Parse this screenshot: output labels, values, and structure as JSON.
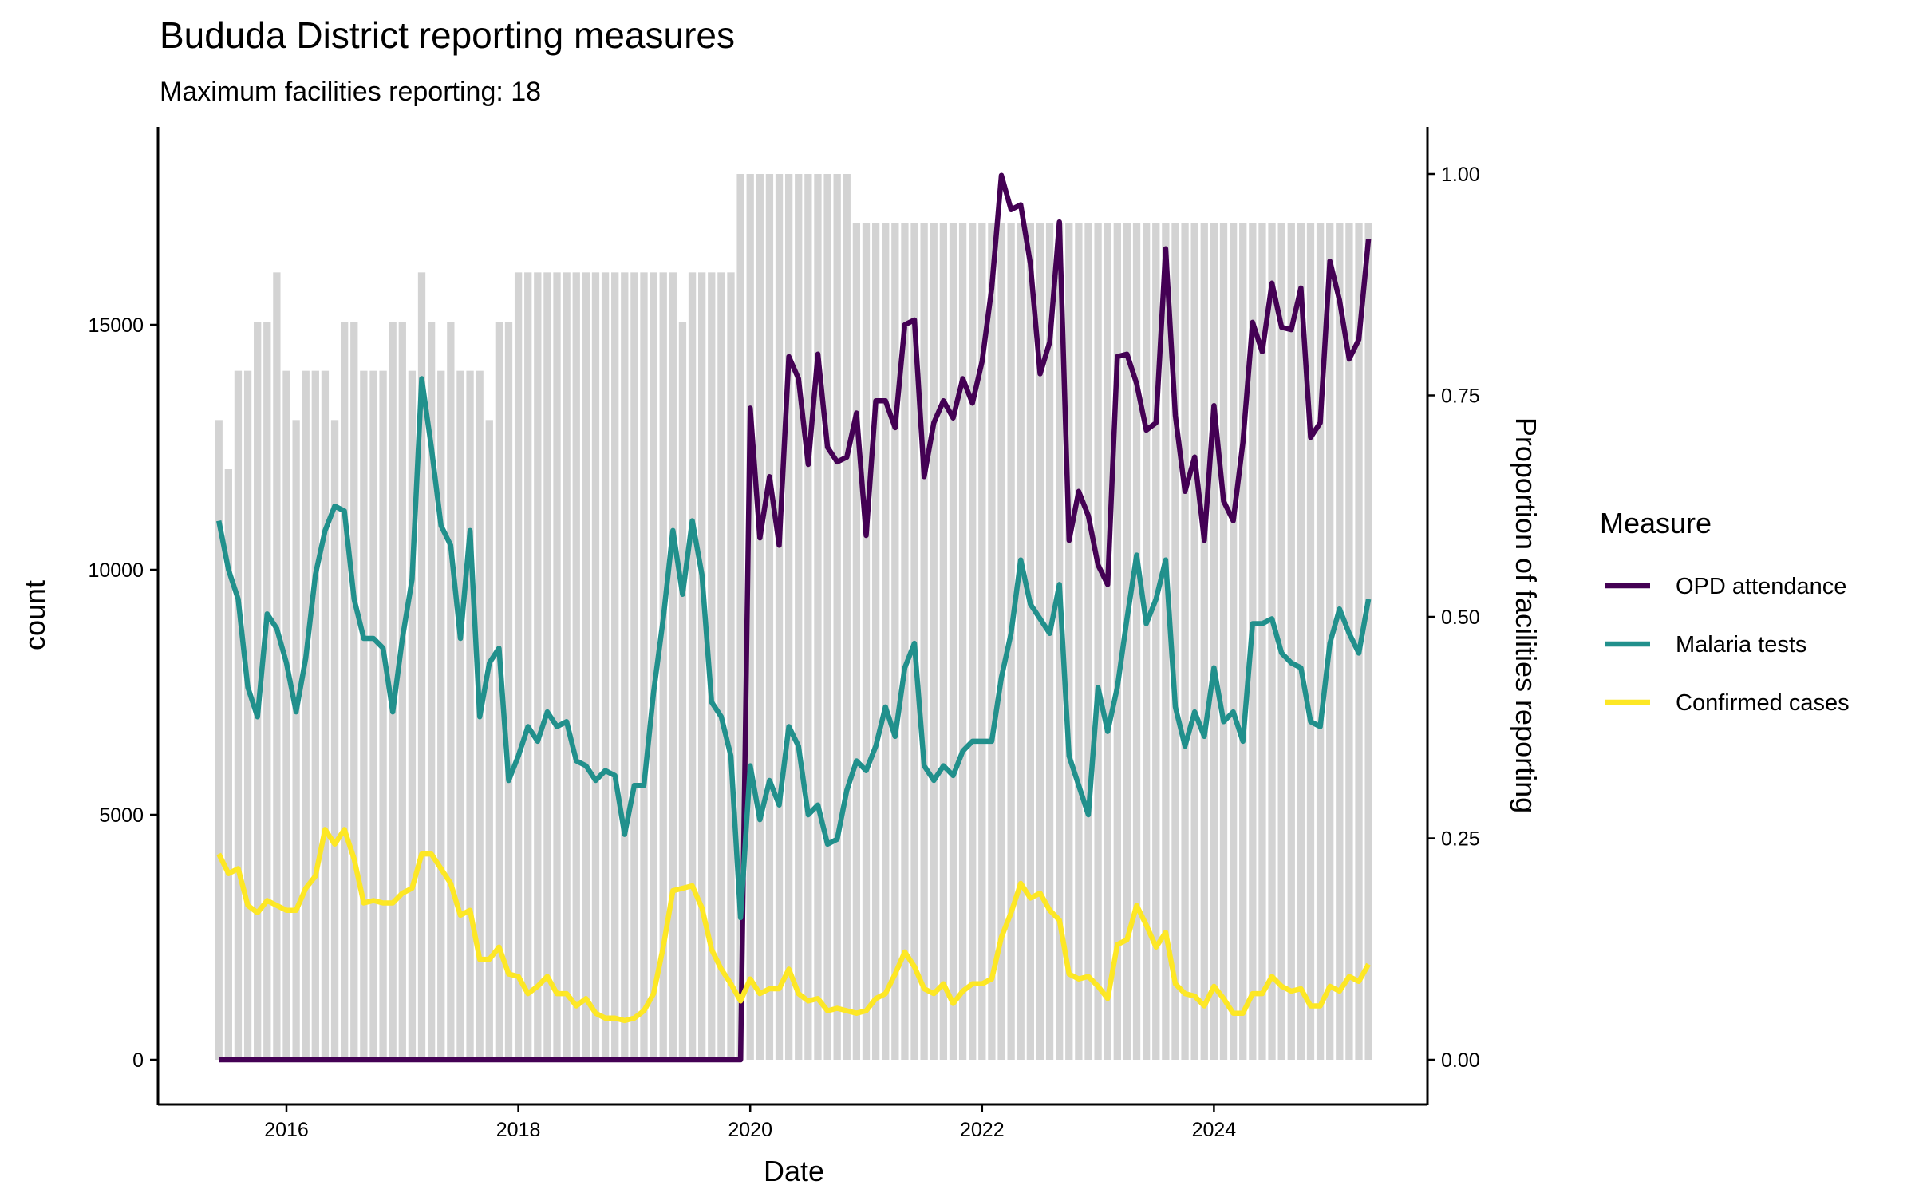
{
  "chart_data": {
    "type": "line",
    "title": "Bududa District reporting measures",
    "subtitle": "Maximum facilities reporting: 18",
    "xlabel": "Date",
    "ylabel": "count",
    "y2label": "Proportion of facilities reporting",
    "xticks": [
      "2016",
      "2018",
      "2020",
      "2022",
      "2024"
    ],
    "yticks": [
      "0",
      "5000",
      "10000",
      "15000"
    ],
    "y2ticks": [
      "0.00",
      "0.25",
      "0.50",
      "0.75",
      "1.00"
    ],
    "ylim": [
      -1000,
      18500
    ],
    "y2lim": [
      0,
      1
    ],
    "max_facilities": 18,
    "grid": false,
    "legend": {
      "title": "Measure",
      "placement": "right"
    },
    "dates": [
      "2015-06",
      "2015-07",
      "2015-08",
      "2015-09",
      "2015-10",
      "2015-11",
      "2015-12",
      "2016-01",
      "2016-02",
      "2016-03",
      "2016-04",
      "2016-05",
      "2016-06",
      "2016-07",
      "2016-08",
      "2016-09",
      "2016-10",
      "2016-11",
      "2016-12",
      "2017-01",
      "2017-02",
      "2017-03",
      "2017-04",
      "2017-05",
      "2017-06",
      "2017-07",
      "2017-08",
      "2017-09",
      "2017-10",
      "2017-11",
      "2017-12",
      "2018-01",
      "2018-02",
      "2018-03",
      "2018-04",
      "2018-05",
      "2018-06",
      "2018-07",
      "2018-08",
      "2018-09",
      "2018-10",
      "2018-11",
      "2018-12",
      "2019-01",
      "2019-02",
      "2019-03",
      "2019-04",
      "2019-05",
      "2019-06",
      "2019-07",
      "2019-08",
      "2019-09",
      "2019-10",
      "2019-11",
      "2019-12",
      "2020-01",
      "2020-02",
      "2020-03",
      "2020-04",
      "2020-05",
      "2020-06",
      "2020-07",
      "2020-08",
      "2020-09",
      "2020-10",
      "2020-11",
      "2020-12",
      "2021-01",
      "2021-02",
      "2021-03",
      "2021-04",
      "2021-05",
      "2021-06",
      "2021-07",
      "2021-08",
      "2021-09",
      "2021-10",
      "2021-11",
      "2021-12",
      "2022-01",
      "2022-02",
      "2022-03",
      "2022-04",
      "2022-05",
      "2022-06",
      "2022-07",
      "2022-08",
      "2022-09",
      "2022-10",
      "2022-11",
      "2022-12",
      "2023-01",
      "2023-02",
      "2023-03",
      "2023-04",
      "2023-05",
      "2023-06",
      "2023-07",
      "2023-08",
      "2023-09",
      "2023-10",
      "2023-11",
      "2023-12",
      "2024-01",
      "2024-02",
      "2024-03",
      "2024-04",
      "2024-05",
      "2024-06",
      "2024-07",
      "2024-08",
      "2024-09",
      "2024-10",
      "2024-11",
      "2024-12",
      "2025-01",
      "2025-02",
      "2025-03",
      "2025-04",
      "2025-05"
    ],
    "facilities_reporting": [
      13,
      12,
      14,
      14,
      15,
      15,
      16,
      14,
      13,
      14,
      14,
      14,
      13,
      15,
      15,
      14,
      14,
      14,
      15,
      15,
      14,
      16,
      15,
      14,
      15,
      14,
      14,
      14,
      13,
      15,
      15,
      16,
      16,
      16,
      16,
      16,
      16,
      16,
      16,
      16,
      16,
      16,
      16,
      16,
      16,
      16,
      16,
      16,
      15,
      16,
      16,
      16,
      16,
      16,
      18,
      18,
      18,
      18,
      18,
      18,
      18,
      18,
      18,
      18,
      18,
      18,
      17,
      17,
      17,
      17,
      17,
      17,
      17,
      17,
      17,
      17,
      17,
      17,
      17,
      17,
      17,
      17,
      17,
      17,
      17,
      17,
      17,
      17,
      17,
      17,
      17,
      17,
      17,
      17,
      17,
      17,
      17,
      17,
      17,
      17,
      17,
      17,
      17,
      17,
      17,
      17,
      17,
      17,
      17,
      17,
      17,
      17,
      17,
      17,
      17,
      17,
      17,
      17,
      17,
      17
    ],
    "series": [
      {
        "name": "OPD attendance",
        "color": "#440154",
        "values": [
          0,
          0,
          0,
          0,
          0,
          0,
          0,
          0,
          0,
          0,
          0,
          0,
          0,
          0,
          0,
          0,
          0,
          0,
          0,
          0,
          0,
          0,
          0,
          0,
          0,
          0,
          0,
          0,
          0,
          0,
          0,
          0,
          0,
          0,
          0,
          0,
          0,
          0,
          0,
          0,
          0,
          0,
          0,
          0,
          0,
          0,
          0,
          0,
          0,
          0,
          0,
          0,
          0,
          0,
          0,
          13300,
          10650,
          11900,
          10500,
          14350,
          13900,
          12150,
          14400,
          12500,
          12200,
          12300,
          13200,
          10700,
          13450,
          13450,
          12900,
          15000,
          15100,
          11900,
          13000,
          13450,
          13100,
          13900,
          13400,
          14250,
          15750,
          18050,
          17350,
          17450,
          16250,
          14000,
          14650,
          17100,
          10600,
          11600,
          11100,
          10100,
          9700,
          14350,
          14400,
          13800,
          12850,
          13000,
          16550,
          13150,
          11600,
          12300,
          10600,
          13350,
          11400,
          11000,
          12600,
          15050,
          14450,
          15850,
          14950,
          14900,
          15750,
          12700,
          13000,
          16300,
          15500,
          14300,
          14700,
          16750
        ]
      },
      {
        "name": "Malaria tests",
        "color": "#21908C",
        "values": [
          11000,
          10000,
          9400,
          7600,
          7000,
          9100,
          8800,
          8100,
          7100,
          8200,
          9900,
          10800,
          11300,
          11200,
          9400,
          8600,
          8600,
          8400,
          7100,
          8600,
          9800,
          13900,
          12500,
          10900,
          10500,
          8600,
          10800,
          7000,
          8100,
          8400,
          5700,
          6200,
          6800,
          6500,
          7100,
          6800,
          6900,
          6100,
          6000,
          5700,
          5900,
          5800,
          4600,
          5600,
          5600,
          7500,
          9000,
          10800,
          9500,
          11000,
          9900,
          7300,
          7000,
          6200,
          2900,
          6000,
          4900,
          5700,
          5200,
          6800,
          6400,
          5000,
          5200,
          4400,
          4500,
          5500,
          6100,
          5900,
          6400,
          7200,
          6600,
          8000,
          8500,
          6000,
          5700,
          6000,
          5800,
          6300,
          6500,
          6500,
          6500,
          7800,
          8700,
          10200,
          9300,
          9000,
          8700,
          9700,
          6200,
          5600,
          5000,
          7600,
          6700,
          7600,
          9000,
          10300,
          8900,
          9400,
          10200,
          7200,
          6400,
          7100,
          6600,
          8000,
          6900,
          7100,
          6500,
          8900,
          8900,
          9000,
          8300,
          8100,
          8000,
          6900,
          6800,
          8500,
          9200,
          8700,
          8300,
          9400
        ]
      },
      {
        "name": "Confirmed cases",
        "color": "#FDE725",
        "values": [
          4200,
          3800,
          3900,
          3150,
          3000,
          3250,
          3150,
          3050,
          3050,
          3500,
          3750,
          4700,
          4400,
          4700,
          4100,
          3200,
          3250,
          3200,
          3200,
          3400,
          3500,
          4200,
          4200,
          3900,
          3600,
          2950,
          3050,
          2050,
          2050,
          2300,
          1750,
          1700,
          1350,
          1500,
          1700,
          1350,
          1350,
          1100,
          1250,
          950,
          850,
          850,
          800,
          850,
          1000,
          1350,
          2300,
          3450,
          3500,
          3550,
          3100,
          2250,
          1850,
          1550,
          1200,
          1650,
          1350,
          1450,
          1450,
          1850,
          1350,
          1200,
          1250,
          1000,
          1050,
          1000,
          950,
          1000,
          1250,
          1350,
          1750,
          2200,
          1900,
          1450,
          1350,
          1550,
          1150,
          1400,
          1550,
          1550,
          1650,
          2500,
          3000,
          3600,
          3300,
          3400,
          3050,
          2850,
          1750,
          1650,
          1700,
          1500,
          1250,
          2350,
          2450,
          3150,
          2750,
          2300,
          2600,
          1550,
          1350,
          1300,
          1100,
          1500,
          1250,
          950,
          950,
          1350,
          1350,
          1700,
          1500,
          1400,
          1450,
          1100,
          1100,
          1500,
          1400,
          1700,
          1600,
          1950
        ]
      }
    ],
    "bar_color": "#D3D3D3"
  }
}
